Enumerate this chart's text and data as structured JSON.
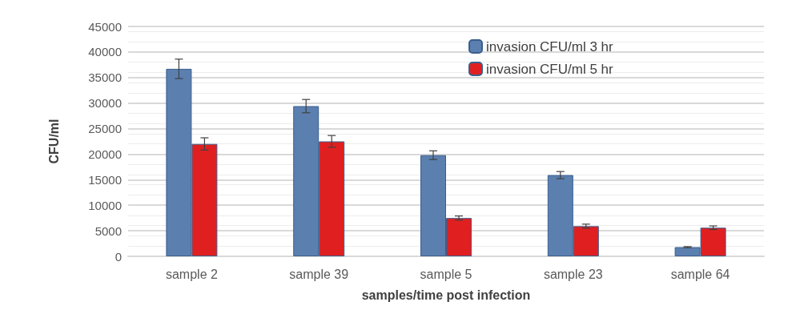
{
  "chart_data": {
    "type": "bar",
    "xlabel": "samples/time post infection",
    "ylabel": "CFU/ml",
    "categories": [
      "sample 2",
      "sample 39",
      "sample 5",
      "sample 23",
      "sample 64"
    ],
    "series": [
      {
        "name": "invasion CFU/ml 3 hr",
        "color": "#5b7fae",
        "values": [
          36700,
          29400,
          19800,
          15900,
          1800
        ],
        "errors": [
          1900,
          1300,
          850,
          700,
          100
        ]
      },
      {
        "name": "invasion CFU/ml 5 hr",
        "color": "#e02020",
        "values": [
          22000,
          22500,
          7500,
          5900,
          5600
        ],
        "errors": [
          1200,
          1150,
          400,
          400,
          350
        ]
      }
    ],
    "ylim": [
      0,
      45000
    ],
    "yticks": [
      0,
      5000,
      10000,
      15000,
      20000,
      25000,
      30000,
      35000,
      40000,
      45000
    ],
    "grid": "y",
    "legend": "top right"
  }
}
